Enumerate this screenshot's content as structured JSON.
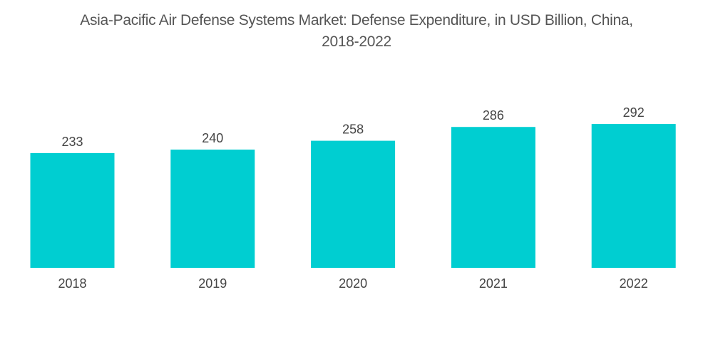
{
  "chart_data": {
    "type": "bar",
    "title": "Asia-Pacific Air Defense Systems Market: Defense Expenditure, in USD Billion, China, 2018-2022",
    "title_lines": [
      "Asia-Pacific Air Defense Systems Market: Defense Expenditure, in USD Billion, China,",
      "2018-2022"
    ],
    "categories": [
      "2018",
      "2019",
      "2020",
      "2021",
      "2022"
    ],
    "values": [
      233,
      240,
      258,
      286,
      292
    ],
    "xlabel": "",
    "ylabel": "",
    "ylim": [
      0,
      292
    ],
    "grid": false,
    "legend": "none",
    "bar_color": "#00CED1",
    "data_labels": true
  }
}
